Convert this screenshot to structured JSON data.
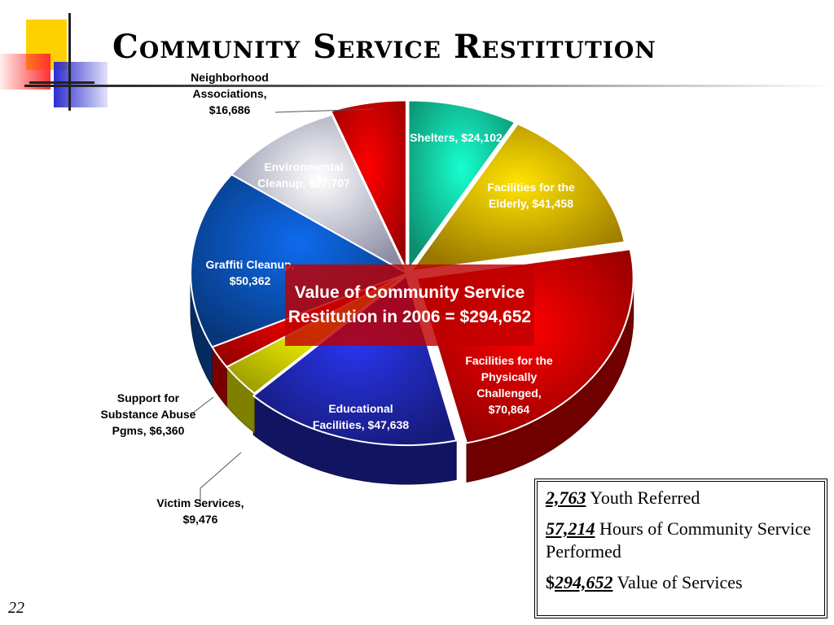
{
  "slide": {
    "title": "Community Service Restitution",
    "page_number": "22"
  },
  "chart_data": {
    "type": "pie",
    "title": "",
    "total_label": "Value of Community Service Restitution in 2006 = $294,652",
    "slices": [
      {
        "name": "Shelters",
        "value": 24102,
        "label": "Shelters, $24,102",
        "color": "#11c99a"
      },
      {
        "name": "Facilities for the Elderly",
        "value": 41458,
        "label": "Facilities for the Elderly, $41,458",
        "color": "#d9a800"
      },
      {
        "name": "Facilities for the Physically Challenged",
        "value": 70864,
        "label": "Facilities for the Physically Challenged, $70,864",
        "color": "#cc0000"
      },
      {
        "name": "Educational Facilities",
        "value": 47638,
        "label": "Educational Facilities, $47,638",
        "color": "#1f27b0"
      },
      {
        "name": "Victim Services",
        "value": 9476,
        "label": "Victim Services, $9,476",
        "color": "#e6e600"
      },
      {
        "name": "Support for Substance Abuse Pgms",
        "value": 6360,
        "label": "Support for Substance Abuse Pgms, $6,360",
        "color": "#dd0000"
      },
      {
        "name": "Graffiti Cleanup",
        "value": 50362,
        "label": "Graffiti Cleanup, $50,362",
        "color": "#0a4fb0"
      },
      {
        "name": "Environmental Cleanup",
        "value": 27707,
        "label": "Environmental Cleanup, $27,707",
        "color": "#c4c6ea"
      },
      {
        "name": "Neighborhood Associations",
        "value": 16686,
        "label": "Neighborhood Associations, $16,686",
        "color": "#dd0000"
      }
    ]
  },
  "stats": [
    {
      "number": "2,763",
      "prefix": "",
      "text": " Youth Referred"
    },
    {
      "number": "57,214",
      "prefix": "",
      "text": " Hours of Community Service Performed"
    },
    {
      "number": "294,652",
      "prefix": "$",
      "text": " Value of Services"
    }
  ]
}
